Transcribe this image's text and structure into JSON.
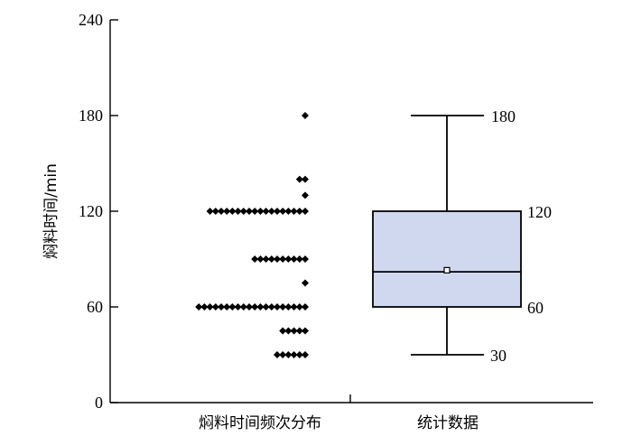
{
  "chart_data": {
    "type": "scatter",
    "ylabel": "焖料时间/min",
    "ylim": [
      0,
      240
    ],
    "yticks": [
      0,
      60,
      120,
      180,
      240
    ],
    "categories": [
      "焖料时间频次分布",
      "统计数据"
    ],
    "grid": false,
    "dot_series": {
      "category": "焖料时间频次分布",
      "points": [
        {
          "value": 180,
          "count": 1
        },
        {
          "value": 140,
          "count": 2
        },
        {
          "value": 130,
          "count": 1
        },
        {
          "value": 120,
          "count": 18
        },
        {
          "value": 90,
          "count": 10
        },
        {
          "value": 75,
          "count": 1
        },
        {
          "value": 60,
          "count": 20
        },
        {
          "value": 45,
          "count": 5
        },
        {
          "value": 30,
          "count": 6
        }
      ]
    },
    "box_series": {
      "category": "统计数据",
      "min": 30,
      "q1": 60,
      "median": 82,
      "mean": 83,
      "q3": 120,
      "max": 180,
      "labels": [
        "180",
        "120",
        "60",
        "30"
      ],
      "fill_color": "#cfd8ee"
    }
  }
}
